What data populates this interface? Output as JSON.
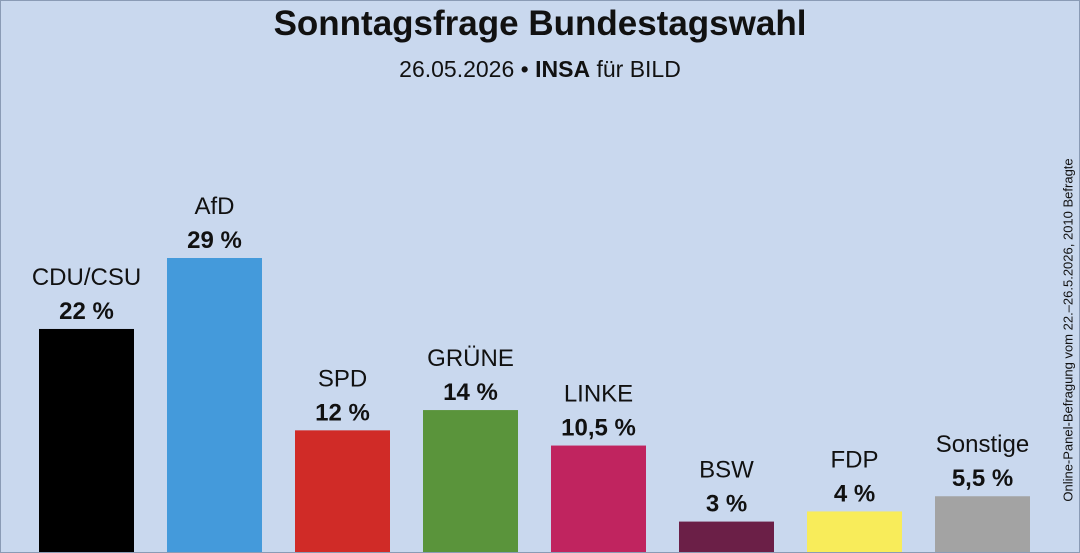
{
  "title": "Sonntagsfrage Bundestagswahl",
  "subtitle": {
    "date": "26.05.2026",
    "separator": "•",
    "institute": "INSA",
    "client": "für BILD"
  },
  "side_note": "Online-Panel-Befragung vom 22.–26.5.2026, 2010 Befragte",
  "chart_data": {
    "type": "bar",
    "title": "Sonntagsfrage Bundestagswahl",
    "categories": [
      "CDU/CSU",
      "AfD",
      "SPD",
      "GRÜNE",
      "LINKE",
      "BSW",
      "FDP",
      "Sonstige"
    ],
    "values": [
      22,
      29,
      12,
      14,
      10.5,
      3,
      4,
      5.5
    ],
    "value_labels": [
      "22 %",
      "29 %",
      "12 %",
      "14 %",
      "10,5 %",
      "3 %",
      "4 %",
      "5,5 %"
    ],
    "colors": [
      "#000000",
      "#449adb",
      "#d02b27",
      "#5a943b",
      "#c0245f",
      "#6b1f47",
      "#f8ec5a",
      "#a3a3a3"
    ],
    "unit": "%",
    "grid": false,
    "legend": "none"
  }
}
